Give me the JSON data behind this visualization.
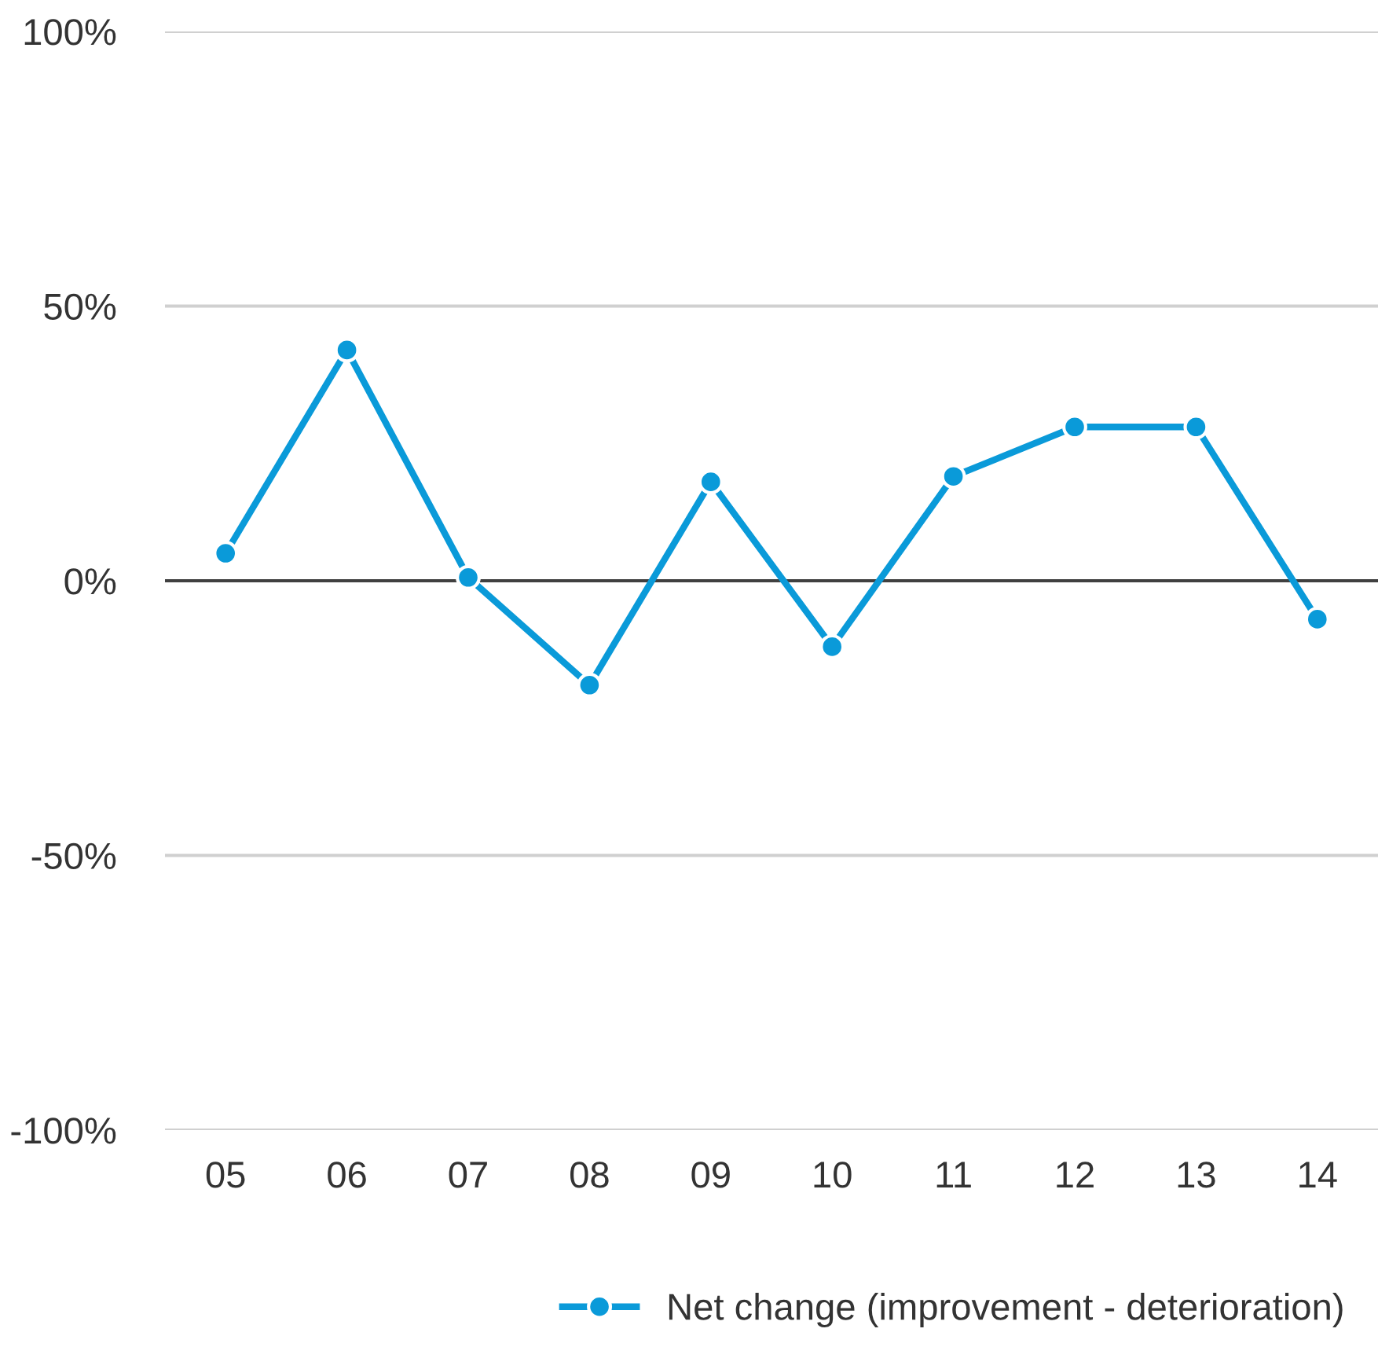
{
  "chart_data": {
    "type": "line",
    "categories": [
      "05",
      "06",
      "07",
      "08",
      "09",
      "10",
      "11",
      "12",
      "13",
      "14"
    ],
    "series": [
      {
        "name": "Net change (improvement - deterioration)",
        "color": "#0a9ad9",
        "values": [
          5,
          42,
          0.6,
          -19,
          18,
          -12,
          19,
          28,
          28,
          -7
        ]
      }
    ],
    "ylim": [
      -100,
      100
    ],
    "yticks": [
      {
        "value": -100,
        "label": "-100%"
      },
      {
        "value": -50,
        "label": "-50%"
      },
      {
        "value": 0,
        "label": "0%"
      },
      {
        "value": 50,
        "label": "50%"
      },
      {
        "value": 100,
        "label": "100%"
      }
    ],
    "ref_lines": [
      {
        "axis": "y",
        "value": 0,
        "color": "#404040"
      }
    ],
    "grid": "y",
    "legend": "bottom right",
    "marker": "circle",
    "line_style": "solid"
  }
}
